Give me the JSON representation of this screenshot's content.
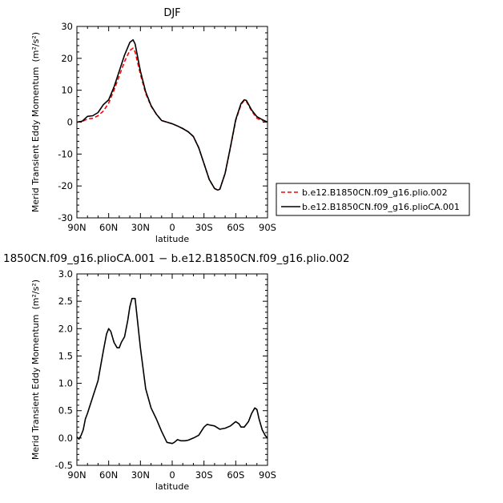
{
  "chart_data": [
    {
      "type": "line",
      "title": "DJF",
      "xlabel": "latitude",
      "ylabel": "Merid Transient Eddy Momentum",
      "yunits": "(m²/s²)",
      "xlim": [
        90,
        -90
      ],
      "ylim": [
        -30,
        30
      ],
      "xticks": [
        90,
        60,
        30,
        0,
        -30,
        -60,
        -90
      ],
      "xtick_labels": [
        "90N",
        "60N",
        "30N",
        "0",
        "30S",
        "60S",
        "90S"
      ],
      "yticks": [
        -30,
        -20,
        -10,
        0,
        10,
        20,
        30
      ],
      "ytick_labels": [
        "-30",
        "-20",
        "-10",
        "0",
        "10",
        "20",
        "30"
      ],
      "x": [
        90,
        85,
        80,
        75,
        70,
        65,
        60,
        55,
        50,
        45,
        40,
        37,
        35,
        30,
        25,
        20,
        15,
        10,
        5,
        0,
        -5,
        -10,
        -15,
        -20,
        -25,
        -30,
        -35,
        -40,
        -43,
        -45,
        -50,
        -55,
        -60,
        -65,
        -68,
        -70,
        -75,
        -80,
        -85,
        -90
      ],
      "series": [
        {
          "name": "b.e12.B1850CN.f09_g16.plio.002",
          "color": "#ff0000",
          "dash": "dashed",
          "values": [
            0,
            0.2,
            1.0,
            1.2,
            2.0,
            3.5,
            6.0,
            10.0,
            14.5,
            19.0,
            22.5,
            23.2,
            22.0,
            15.0,
            9.0,
            5.0,
            2.5,
            0.5,
            0,
            -0.5,
            -1.2,
            -2.0,
            -3.0,
            -4.5,
            -8.0,
            -13.0,
            -18.0,
            -20.8,
            -21.3,
            -21.0,
            -16.0,
            -8.0,
            0.5,
            5.5,
            6.8,
            6.5,
            3.5,
            1.2,
            0.5,
            0
          ]
        },
        {
          "name": "b.e12.B1850CN.f09_g16.plioCA.001",
          "color": "#000000",
          "dash": "solid",
          "values": [
            0,
            0.3,
            1.8,
            2.0,
            3.0,
            5.5,
            7.0,
            11.0,
            16.0,
            21.0,
            25.0,
            25.8,
            24.5,
            16.0,
            9.5,
            5.2,
            2.5,
            0.5,
            0,
            -0.5,
            -1.2,
            -2.0,
            -3.0,
            -4.5,
            -8.0,
            -13.0,
            -18.0,
            -20.8,
            -21.3,
            -21.0,
            -16.0,
            -7.8,
            0.8,
            5.8,
            7.0,
            6.8,
            3.8,
            1.7,
            0.8,
            0
          ]
        }
      ],
      "legend_position": "right"
    },
    {
      "type": "line",
      "title": "1850CN.f09_g16.plioCA.001 − b.e12.B1850CN.f09_g16.plio.002",
      "xlabel": "latitude",
      "ylabel": "Merid Transient Eddy Momentum",
      "yunits": "(m²/s²)",
      "xlim": [
        90,
        -90
      ],
      "ylim": [
        -0.5,
        3.0
      ],
      "xticks": [
        90,
        60,
        30,
        0,
        -30,
        -60,
        -90
      ],
      "xtick_labels": [
        "90N",
        "60N",
        "30N",
        "0",
        "30S",
        "60S",
        "90S"
      ],
      "yticks": [
        -0.5,
        0,
        0.5,
        1.0,
        1.5,
        2.0,
        2.5,
        3.0
      ],
      "ytick_labels": [
        "-0.5",
        "0.0",
        "0.5",
        "1.0",
        "1.5",
        "2.0",
        "2.5",
        "3.0"
      ],
      "x": [
        90,
        88,
        86,
        84,
        82,
        80,
        75,
        70,
        65,
        62,
        60,
        58,
        55,
        52,
        50,
        48,
        45,
        42,
        40,
        38,
        35,
        30,
        25,
        20,
        15,
        10,
        5,
        0,
        -2,
        -5,
        -8,
        -12,
        -15,
        -20,
        -25,
        -30,
        -33,
        -35,
        -40,
        -45,
        -50,
        -55,
        -60,
        -63,
        -65,
        -68,
        -72,
        -75,
        -78,
        -80,
        -82,
        -85,
        -88,
        -90
      ],
      "series": [
        {
          "name": "",
          "color": "#000000",
          "dash": "solid",
          "values": [
            0.02,
            -0.02,
            0.05,
            0.15,
            0.35,
            0.45,
            0.75,
            1.05,
            1.6,
            1.9,
            2.0,
            1.95,
            1.75,
            1.65,
            1.65,
            1.75,
            1.85,
            2.15,
            2.4,
            2.55,
            2.55,
            1.65,
            0.9,
            0.55,
            0.35,
            0.12,
            -0.08,
            -0.1,
            -0.08,
            -0.03,
            -0.05,
            -0.05,
            -0.04,
            0.0,
            0.05,
            0.2,
            0.25,
            0.24,
            0.22,
            0.16,
            0.18,
            0.22,
            0.3,
            0.26,
            0.2,
            0.2,
            0.3,
            0.45,
            0.55,
            0.52,
            0.35,
            0.15,
            0.04,
            0.0
          ]
        }
      ]
    }
  ]
}
